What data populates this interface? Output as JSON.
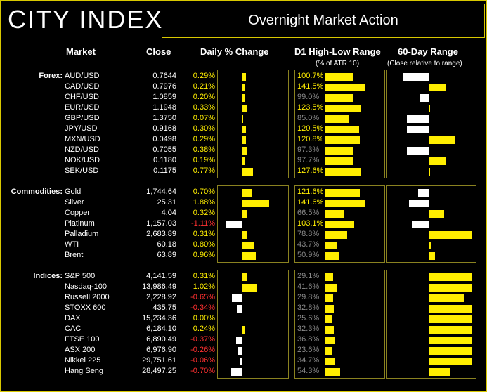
{
  "header": {
    "logo": "CITY INDEX",
    "title": "Overnight Market Action"
  },
  "columns": {
    "market": "Market",
    "close": "Close",
    "daily_change": "Daily % Change",
    "d1_range": "D1 High-Low Range",
    "d1_range_sub": "(% of ATR 10)",
    "sixty_day": "60-Day Range",
    "sixty_day_sub": "(Close relative to range)"
  },
  "colors": {
    "positive": "#ffee00",
    "negative": "#ff3030",
    "dim": "#8a8a8a",
    "accent": "#d8c800"
  },
  "sections": [
    {
      "label": "Forex:",
      "rows": [
        {
          "market": "AUD/USD",
          "close": "0.7644",
          "change": "0.29%",
          "chg": 0.29,
          "atr": "100.7%",
          "atr_v": 100.7,
          "sixty": -0.6
        },
        {
          "market": "CAD/USD",
          "close": "0.7976",
          "change": "0.21%",
          "chg": 0.21,
          "atr": "141.5%",
          "atr_v": 141.5,
          "sixty": 0.4
        },
        {
          "market": "CHF/USD",
          "close": "1.0859",
          "change": "0.20%",
          "chg": 0.2,
          "atr": "99.0%",
          "atr_v": 99.0,
          "sixty": -0.2
        },
        {
          "market": "EUR/USD",
          "close": "1.1948",
          "change": "0.33%",
          "chg": 0.33,
          "atr": "123.5%",
          "atr_v": 123.5,
          "sixty": 0.02
        },
        {
          "market": "GBP/USD",
          "close": "1.3750",
          "change": "0.07%",
          "chg": 0.07,
          "atr": "85.0%",
          "atr_v": 85.0,
          "sixty": -0.5
        },
        {
          "market": "JPY/USD",
          "close": "0.9168",
          "change": "0.30%",
          "chg": 0.3,
          "atr": "120.5%",
          "atr_v": 120.5,
          "sixty": -0.5
        },
        {
          "market": "MXN/USD",
          "close": "0.0498",
          "change": "0.29%",
          "chg": 0.29,
          "atr": "120.8%",
          "atr_v": 120.8,
          "sixty": 0.6
        },
        {
          "market": "NZD/USD",
          "close": "0.7055",
          "change": "0.38%",
          "chg": 0.38,
          "atr": "97.3%",
          "atr_v": 97.3,
          "sixty": -0.5
        },
        {
          "market": "NOK/USD",
          "close": "0.1180",
          "change": "0.19%",
          "chg": 0.19,
          "atr": "97.7%",
          "atr_v": 97.7,
          "sixty": 0.4
        },
        {
          "market": "SEK/USD",
          "close": "0.1175",
          "change": "0.77%",
          "chg": 0.77,
          "atr": "127.6%",
          "atr_v": 127.6,
          "sixty": 0.02
        }
      ]
    },
    {
      "label": "Commodities:",
      "rows": [
        {
          "market": "Gold",
          "close": "1,744.64",
          "change": "0.70%",
          "chg": 0.7,
          "atr": "121.6%",
          "atr_v": 121.6,
          "sixty": -0.25
        },
        {
          "market": "Silver",
          "close": "25.31",
          "change": "1.88%",
          "chg": 1.88,
          "atr": "141.6%",
          "atr_v": 141.6,
          "sixty": -0.45
        },
        {
          "market": "Copper",
          "close": "4.04",
          "change": "0.32%",
          "chg": 0.32,
          "atr": "66.5%",
          "atr_v": 66.5,
          "sixty": 0.35
        },
        {
          "market": "Platinum",
          "close": "1,157.03",
          "change": "-1.11%",
          "chg": -1.11,
          "atr": "103.1%",
          "atr_v": 103.1,
          "sixty": -0.38
        },
        {
          "market": "Palladium",
          "close": "2,683.89",
          "change": "0.31%",
          "chg": 0.31,
          "atr": "78.8%",
          "atr_v": 78.8,
          "sixty": 1.0
        },
        {
          "market": "WTI",
          "close": "60.18",
          "change": "0.80%",
          "chg": 0.8,
          "atr": "43.7%",
          "atr_v": 43.7,
          "sixty": 0.05
        },
        {
          "market": "Brent",
          "close": "63.89",
          "change": "0.96%",
          "chg": 0.96,
          "atr": "50.9%",
          "atr_v": 50.9,
          "sixty": 0.14
        }
      ]
    },
    {
      "label": "Indices:",
      "rows": [
        {
          "market": "S&P 500",
          "close": "4,141.59",
          "change": "0.31%",
          "chg": 0.31,
          "atr": "29.1%",
          "atr_v": 29.1,
          "sixty": 1.0
        },
        {
          "market": "Nasdaq-100",
          "close": "13,986.49",
          "change": "1.02%",
          "chg": 1.02,
          "atr": "41.6%",
          "atr_v": 41.6,
          "sixty": 1.0
        },
        {
          "market": "Russell 2000",
          "close": "2,228.92",
          "change": "-0.65%",
          "chg": -0.65,
          "atr": "29.8%",
          "atr_v": 29.8,
          "sixty": 0.8
        },
        {
          "market": "STOXX 600",
          "close": "435.75",
          "change": "-0.34%",
          "chg": -0.34,
          "atr": "32.8%",
          "atr_v": 32.8,
          "sixty": 1.0
        },
        {
          "market": "DAX",
          "close": "15,234.36",
          "change": "0.00%",
          "chg": 0.0,
          "atr": "25.6%",
          "atr_v": 25.6,
          "sixty": 1.0
        },
        {
          "market": "CAC",
          "close": "6,184.10",
          "change": "0.24%",
          "chg": 0.24,
          "atr": "32.3%",
          "atr_v": 32.3,
          "sixty": 1.0
        },
        {
          "market": "FTSE 100",
          "close": "6,890.49",
          "change": "-0.37%",
          "chg": -0.37,
          "atr": "36.8%",
          "atr_v": 36.8,
          "sixty": 1.0
        },
        {
          "market": "ASX 200",
          "close": "6,976.90",
          "change": "-0.26%",
          "chg": -0.26,
          "atr": "23.6%",
          "atr_v": 23.6,
          "sixty": 1.0
        },
        {
          "market": "Nikkei 225",
          "close": "29,751.61",
          "change": "-0.06%",
          "chg": -0.06,
          "atr": "34.7%",
          "atr_v": 34.7,
          "sixty": 1.0
        },
        {
          "market": "Hang Seng",
          "close": "28,497.25",
          "change": "-0.70%",
          "chg": -0.7,
          "atr": "54.3%",
          "atr_v": 54.3,
          "sixty": 0.5
        }
      ]
    }
  ]
}
